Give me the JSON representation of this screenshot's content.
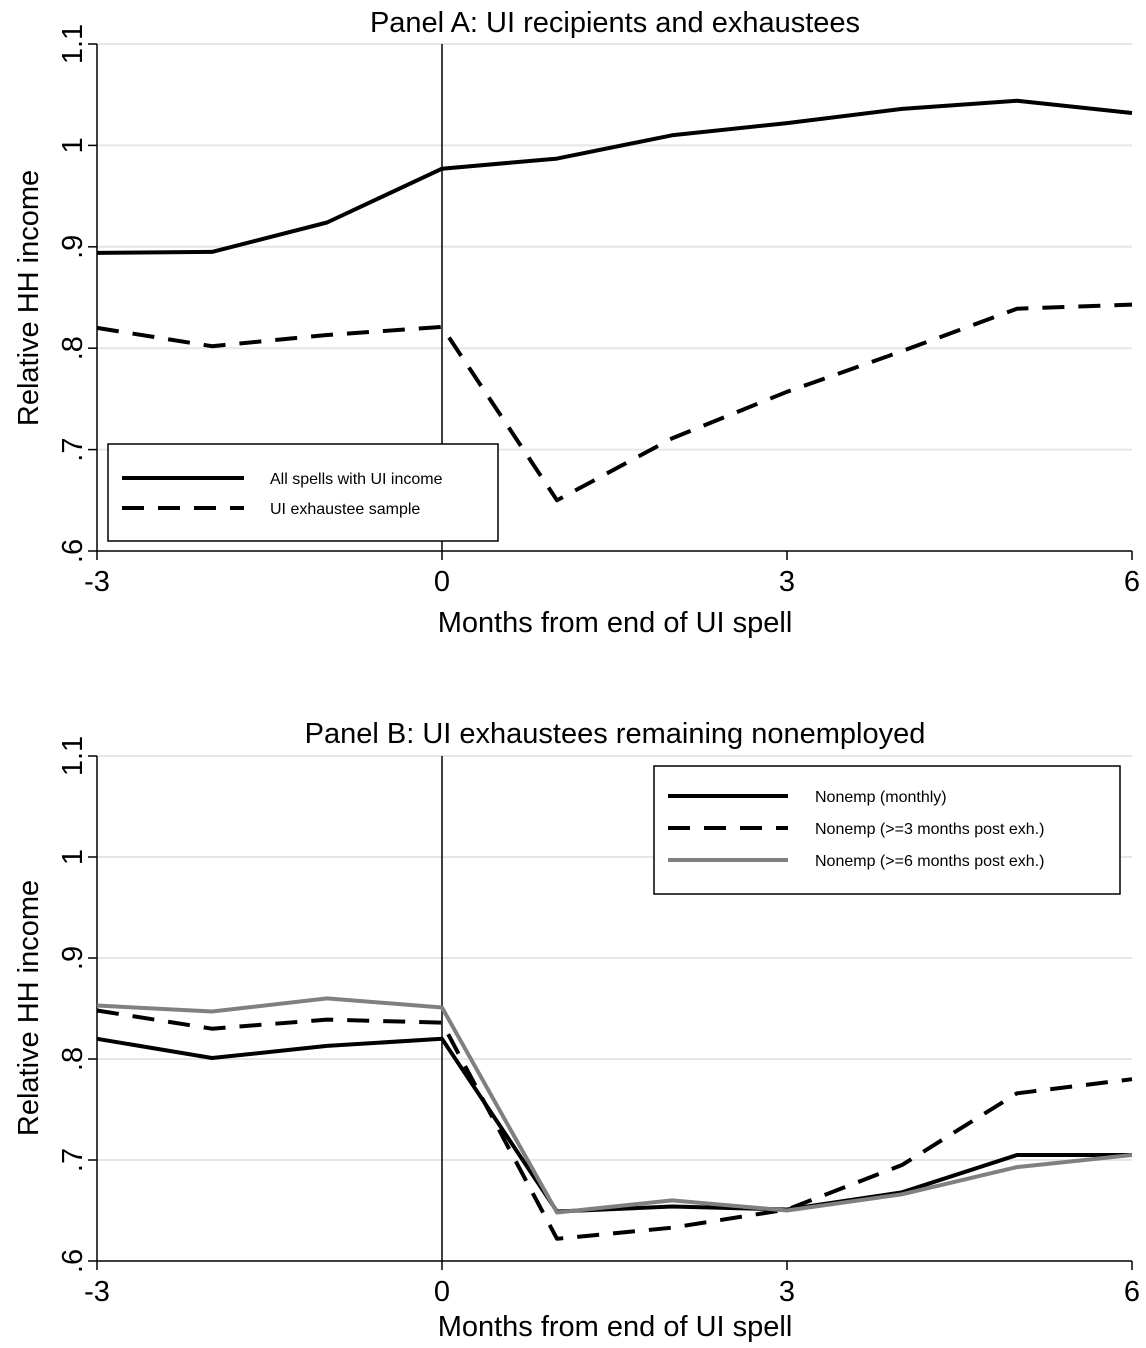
{
  "chart_data": [
    {
      "type": "line",
      "title": "Panel A: UI recipients and exhaustees",
      "xlabel": "Months from end of UI spell",
      "ylabel": "Relative HH income",
      "xlim": [
        -3,
        6
      ],
      "ylim": [
        0.6,
        1.1
      ],
      "xticks": [
        -3,
        0,
        3,
        6
      ],
      "xtick_labels": [
        "-3",
        "0",
        "3",
        "6"
      ],
      "yticks": [
        0.6,
        0.7,
        0.8,
        0.9,
        1.0,
        1.1
      ],
      "ytick_labels": [
        ".6",
        ".7",
        ".8",
        ".9",
        "1",
        "1.1"
      ],
      "grid": true,
      "vline_x": 0,
      "legend_position": "bottom-left",
      "x": [
        -3,
        -2,
        -1,
        0,
        1,
        2,
        3,
        4,
        5,
        6
      ],
      "series": [
        {
          "name": "All spells with UI income",
          "color": "#000000",
          "dash": "solid",
          "values": [
            0.894,
            0.895,
            0.924,
            0.977,
            0.987,
            1.01,
            1.022,
            1.036,
            1.044,
            1.032
          ]
        },
        {
          "name": "UI exhaustee sample",
          "color": "#000000",
          "dash": "dashed",
          "values": [
            0.82,
            0.802,
            0.813,
            0.821,
            0.65,
            0.711,
            0.757,
            0.797,
            0.839,
            0.843
          ]
        }
      ]
    },
    {
      "type": "line",
      "title": "Panel B: UI exhaustees remaining nonemployed",
      "xlabel": "Months from end of UI spell",
      "ylabel": "Relative HH income",
      "xlim": [
        -3,
        6
      ],
      "ylim": [
        0.6,
        1.1
      ],
      "xticks": [
        -3,
        0,
        3,
        6
      ],
      "xtick_labels": [
        "-3",
        "0",
        "3",
        "6"
      ],
      "yticks": [
        0.6,
        0.7,
        0.8,
        0.9,
        1.0,
        1.1
      ],
      "ytick_labels": [
        ".6",
        ".7",
        ".8",
        ".9",
        "1",
        "1.1"
      ],
      "grid": true,
      "vline_x": 0,
      "legend_position": "top-right",
      "x": [
        -3,
        -2,
        -1,
        0,
        1,
        2,
        3,
        4,
        5,
        6
      ],
      "series": [
        {
          "name": "Nonemp (monthly)",
          "color": "#000000",
          "dash": "solid",
          "values": [
            0.82,
            0.801,
            0.813,
            0.82,
            0.649,
            0.654,
            0.651,
            0.668,
            0.705,
            0.705
          ]
        },
        {
          "name": "Nonemp (>=3 months post exh.)",
          "color": "#000000",
          "dash": "dashed",
          "values": [
            0.848,
            0.83,
            0.839,
            0.836,
            0.622,
            0.633,
            0.651,
            0.695,
            0.766,
            0.78
          ]
        },
        {
          "name": "Nonemp (>=6 months post exh.)",
          "color": "#808080",
          "dash": "solid",
          "values": [
            0.853,
            0.847,
            0.86,
            0.851,
            0.648,
            0.66,
            0.65,
            0.666,
            0.693,
            0.705
          ]
        }
      ]
    }
  ]
}
